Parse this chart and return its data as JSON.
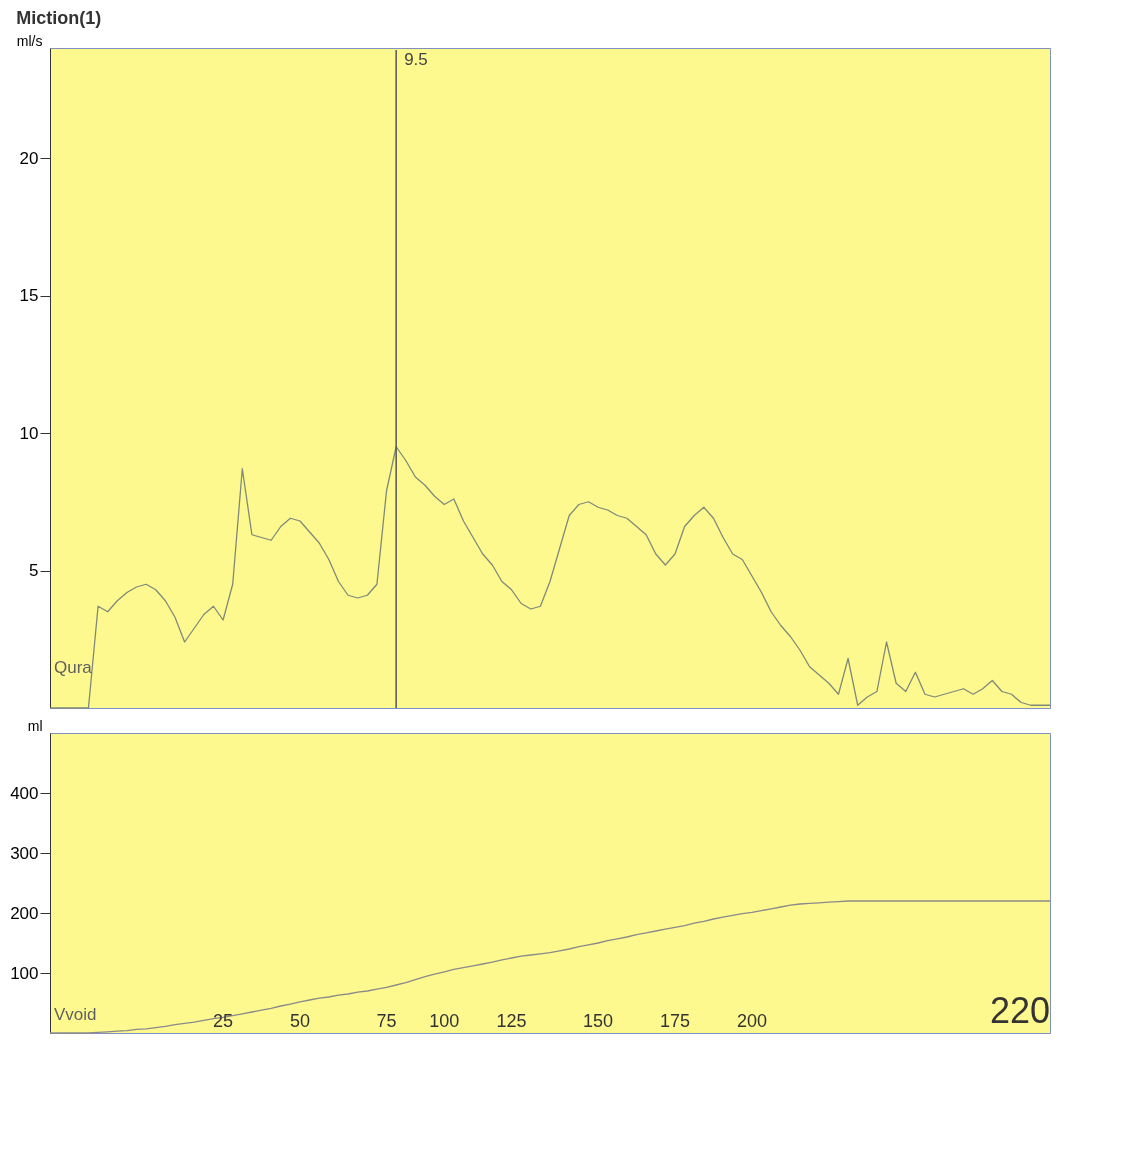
{
  "chart_data": [
    {
      "type": "line",
      "title": "Miction(1)",
      "ylabel": "ml/s",
      "categories": [
        null,
        null,
        null,
        null,
        null,
        null,
        null,
        null,
        null,
        null,
        null,
        null,
        null,
        null,
        null,
        null,
        null,
        null,
        null,
        null,
        null,
        null,
        null,
        null,
        null,
        null,
        null,
        null,
        null,
        null,
        null,
        null,
        null,
        null,
        null,
        null,
        null,
        null,
        null,
        null,
        null,
        null,
        null,
        null,
        null,
        null,
        null,
        null,
        null,
        null,
        null,
        null,
        null,
        null,
        null,
        null,
        null,
        null,
        null,
        null,
        null,
        null,
        null,
        null,
        null,
        null,
        null,
        null,
        null,
        null,
        null,
        null,
        null,
        null,
        null,
        null,
        null,
        null,
        null,
        null,
        null,
        null,
        null,
        null,
        null,
        null,
        null,
        null,
        null,
        null,
        null,
        null,
        null,
        null,
        null,
        null,
        null,
        null,
        null,
        null,
        null,
        null,
        null,
        null,
        null
      ],
      "series": [
        {
          "name": "Qura",
          "color": "#7f8a7a",
          "values": [
            0,
            0,
            0,
            0,
            0,
            3.7,
            3.5,
            3.9,
            4.2,
            4.4,
            4.5,
            4.3,
            3.9,
            3.3,
            2.4,
            2.9,
            3.4,
            3.7,
            3.2,
            4.5,
            8.7,
            6.3,
            6.2,
            6.1,
            6.6,
            6.9,
            6.8,
            6.4,
            6.0,
            5.4,
            4.6,
            4.1,
            4.0,
            4.1,
            4.5,
            7.9,
            9.5,
            9.0,
            8.4,
            8.1,
            7.7,
            7.4,
            7.6,
            6.8,
            6.2,
            5.6,
            5.2,
            4.6,
            4.3,
            3.8,
            3.6,
            3.7,
            4.6,
            5.8,
            7.0,
            7.4,
            7.5,
            7.3,
            7.2,
            7.0,
            6.9,
            6.6,
            6.3,
            5.6,
            5.2,
            5.6,
            6.6,
            7.0,
            7.3,
            6.9,
            6.2,
            5.6,
            5.4,
            4.8,
            4.2,
            3.5,
            3.0,
            2.6,
            2.1,
            1.5,
            1.2,
            0.9,
            0.5,
            1.8,
            0.1,
            0.4,
            0.6,
            2.4,
            0.9,
            0.6,
            1.3,
            0.5,
            0.4,
            0.5,
            0.6,
            0.7,
            0.5,
            0.7,
            1.0,
            0.6,
            0.5,
            0.2,
            0.1,
            0.1,
            0.1
          ]
        }
      ],
      "ylim": [
        0,
        24
      ],
      "yticks": [
        5,
        10,
        15,
        20
      ],
      "tick_labels": "y",
      "grid": false,
      "annotations": [
        "9.5"
      ]
    },
    {
      "type": "line",
      "ylabel": "ml",
      "categories": [
        null,
        null,
        null,
        null,
        null,
        null,
        null,
        null,
        null,
        null,
        null,
        null,
        null,
        null,
        null,
        null,
        null,
        null,
        null,
        null,
        null,
        null,
        null,
        null,
        null,
        null,
        null,
        null,
        null,
        null,
        null,
        null,
        null,
        null,
        null,
        null,
        null,
        null,
        null,
        null,
        null,
        null,
        null,
        null,
        null,
        null,
        null,
        null,
        null,
        null,
        null,
        null,
        null,
        null,
        null,
        null,
        null,
        null,
        null,
        null,
        null,
        null,
        null,
        null,
        null,
        null,
        null,
        null,
        null,
        null,
        null,
        null,
        null,
        null,
        null,
        null,
        null,
        null,
        null,
        null,
        null,
        null,
        null,
        null,
        null,
        null,
        null,
        null,
        null,
        null,
        null,
        null,
        null,
        null,
        null,
        null,
        null,
        null,
        null,
        null,
        null,
        null,
        null,
        null,
        null
      ],
      "series": [
        {
          "name": "Vvoid",
          "color": "#8a8a8a",
          "values": [
            0,
            0,
            0,
            0,
            0,
            1,
            2,
            3,
            4,
            6,
            7,
            9,
            11,
            14,
            16,
            18,
            21,
            24,
            26,
            29,
            32,
            35,
            38,
            41,
            45,
            48,
            52,
            55,
            58,
            60,
            63,
            65,
            68,
            70,
            73,
            76,
            80,
            84,
            89,
            94,
            98,
            102,
            106,
            109,
            112,
            115,
            118,
            122,
            125,
            128,
            130,
            132,
            134,
            137,
            140,
            144,
            147,
            150,
            154,
            157,
            160,
            164,
            167,
            170,
            173,
            176,
            179,
            183,
            186,
            190,
            193,
            196,
            199,
            201,
            204,
            207,
            210,
            213,
            215,
            216,
            217,
            218,
            219,
            220,
            220,
            220,
            220,
            220,
            220,
            220,
            220,
            220,
            220,
            220,
            220,
            220,
            220,
            220,
            220,
            220,
            220,
            220,
            220,
            220,
            220
          ]
        }
      ],
      "ylim": [
        0,
        500
      ],
      "yticks": [
        100,
        200,
        300,
        400
      ],
      "tick_labels": "y",
      "grid": false,
      "annotations": [
        "25",
        "50",
        "75",
        "100",
        "125",
        "150",
        "175",
        "200",
        "220"
      ]
    }
  ]
}
